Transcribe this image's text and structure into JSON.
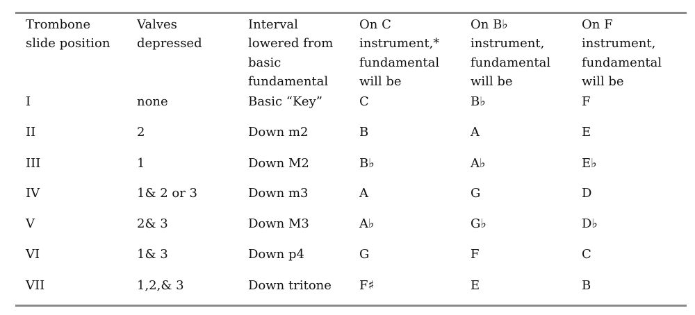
{
  "columns": [
    {
      "header": [
        "Trombone",
        "slide position"
      ]
    },
    {
      "header": [
        "Valves",
        "depressed"
      ]
    },
    {
      "header": [
        "Interval",
        "lowered from",
        "basic",
        "fundamental"
      ]
    },
    {
      "header": [
        "On C",
        "instrument,*",
        "fundamental",
        "will be"
      ]
    },
    {
      "header": [
        "On B♭",
        "instrument,",
        "fundamental",
        "will be"
      ]
    },
    {
      "header": [
        "On F",
        "instrument,",
        "fundamental",
        "will be"
      ]
    }
  ],
  "rows": [
    [
      "I",
      "none",
      "Basic “Key”",
      "C",
      "B♭",
      "F"
    ],
    [
      "II",
      "2",
      "Down m2",
      "B",
      "A",
      "E"
    ],
    [
      "III",
      "1",
      "Down M2",
      "B♭",
      "A♭",
      "E♭"
    ],
    [
      "IV",
      "1& 2 or 3",
      "Down m3",
      "A",
      "G",
      "D"
    ],
    [
      "V",
      "2& 3",
      "Down M3",
      "A♭",
      "G♭",
      "D♭"
    ],
    [
      "VI",
      "1& 3",
      "Down p4",
      "G",
      "F",
      "C"
    ],
    [
      "VII",
      "1,2,& 3",
      "Down tritone",
      "F♯",
      "E",
      "B"
    ]
  ],
  "rule_color": "#8a8a8a"
}
